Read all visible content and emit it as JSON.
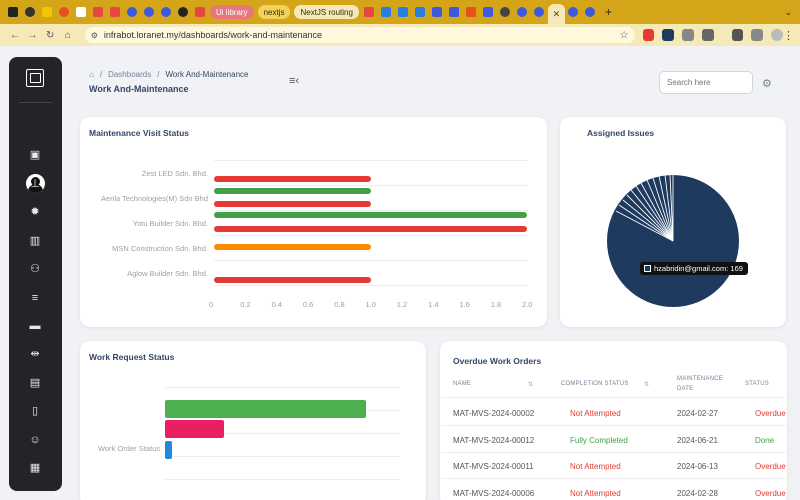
{
  "browser": {
    "url": "infrabot.loranet.my/dashboards/work-and-maintenance",
    "pill_tabs": [
      "Ui library",
      "nextjs",
      "NextJS routing"
    ],
    "accent": "#d4a419"
  },
  "header": {
    "breadcrumb_home_icon": "home-icon",
    "breadcrumb_sep": "/",
    "breadcrumb_1": "Dashboards",
    "breadcrumb_2": "Work And-Maintenance",
    "title": "Work And-Maintenance",
    "search_placeholder": "Search here"
  },
  "maintenance_visit": {
    "title": "Maintenance Visit Status",
    "chart_data": {
      "type": "bar",
      "orientation": "horizontal",
      "categories": [
        "Zest LED Sdn. Bhd.",
        "Aerila Technologies(M) Sdn Bhd",
        "Yotu Builder Sdn. Bhd.",
        "MSN Construction Sdn. Bhd.",
        "Aglow Builder Sdn. Bhd."
      ],
      "bars": [
        {
          "color": "#e53935",
          "value": 1.0
        },
        {
          "color": "#43a047",
          "value": 1.0
        },
        {
          "color": "#e53935",
          "value": 1.0
        },
        {
          "color": "#43a047",
          "value": 2.0
        },
        {
          "color": "#e53935",
          "value": 2.0
        },
        {
          "color": "#fb8c00",
          "value": 1.0
        },
        {
          "color": "#e53935",
          "value": 1.0
        }
      ],
      "xlim": [
        0,
        2.0
      ],
      "xticks": [
        "0",
        "0.2",
        "0.4",
        "0.6",
        "0.8",
        "1.0",
        "1.2",
        "1.4",
        "1.6",
        "1.8",
        "2.0"
      ],
      "grid": true
    }
  },
  "assigned_issues": {
    "title": "Assigned Issues",
    "tooltip": "hzabridin@gmail.com: 169",
    "chart_data": {
      "type": "pie",
      "slices": [
        {
          "label": "hzabridin@gmail.com",
          "value": 169,
          "color": "#1e3a5f"
        }
      ]
    }
  },
  "work_request": {
    "title": "Work Request Status",
    "chart_data": {
      "type": "bar",
      "orientation": "horizontal",
      "categories": [
        "Work Order Status"
      ],
      "bars": [
        {
          "color": "#4caf50",
          "value": 200
        },
        {
          "color": "#e91e63",
          "value": 59
        },
        {
          "color": "#1e88e5",
          "value": 7
        }
      ]
    }
  },
  "overdue": {
    "title": "Overdue Work Orders",
    "columns": {
      "name": "NAME",
      "completion": "COMPLETION STATUS",
      "date1": "MAINTENANCE",
      "date2": "DATE",
      "status": "STATUS"
    },
    "rows": [
      {
        "name": "MAT-MVS-2024-00002",
        "completion": "Not Attempted",
        "date": "2024-02-27",
        "status": "Overdue"
      },
      {
        "name": "MAT-MVS-2024-00012",
        "completion": "Fully Completed",
        "date": "2024-06-21",
        "status": "Done"
      },
      {
        "name": "MAT-MVS-2024-00011",
        "completion": "Not Attempted",
        "date": "2024-06-13",
        "status": "Overdue"
      },
      {
        "name": "MAT-MVS-2024-00006",
        "completion": "Not Attempted",
        "date": "2024-02-28",
        "status": "Overdue"
      }
    ],
    "colors": {
      "red": "#e53935",
      "green": "#43a047"
    }
  }
}
